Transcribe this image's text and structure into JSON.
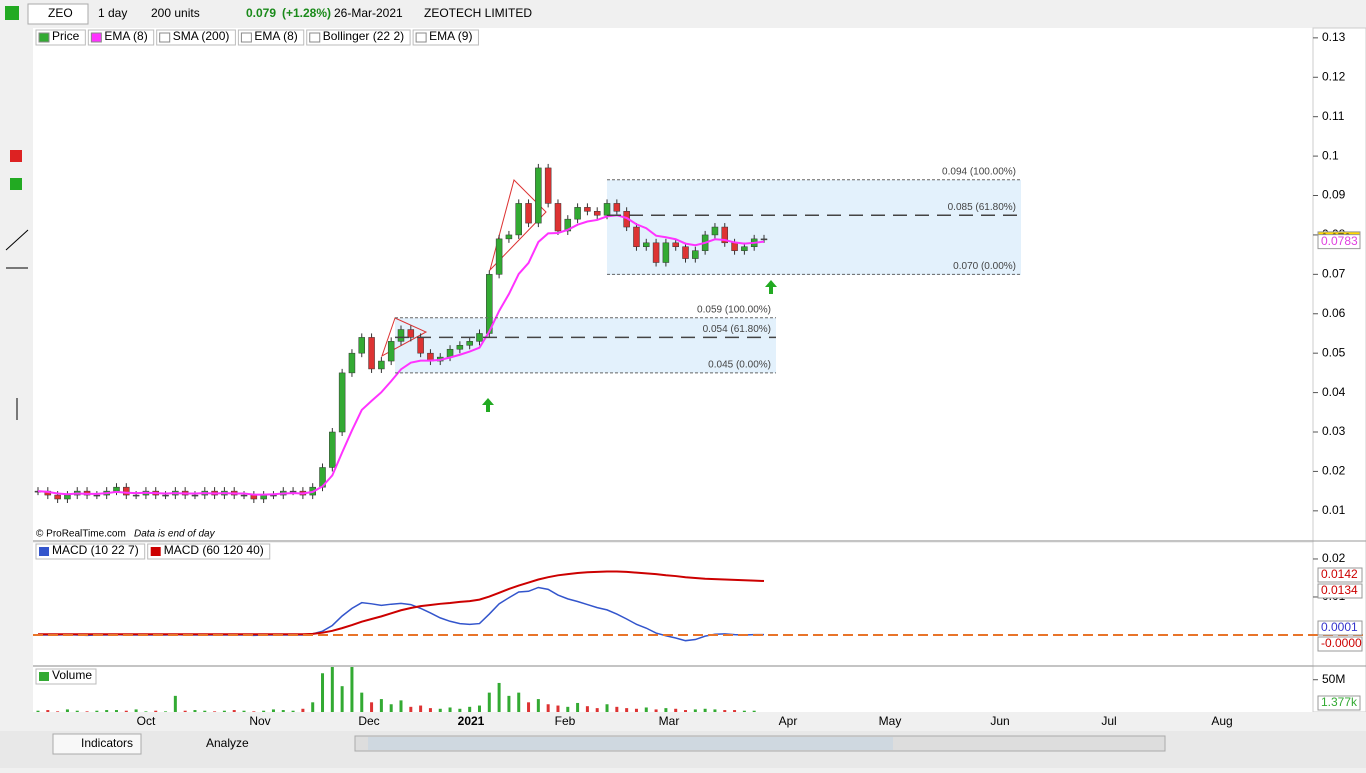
{
  "toolbar": {
    "symbol": "ZEO",
    "period": "1 day",
    "units": "200 units",
    "price": "0.079",
    "change": "(+1.28%)",
    "date": "26-Mar-2021",
    "name": "ZEOTECH LIMITED"
  },
  "chart_data": [
    {
      "type": "candlestick",
      "legend": [
        "Price",
        "EMA (8)",
        "SMA (200)",
        "EMA (8)",
        "Bollinger (22 2)",
        "EMA (9)"
      ],
      "series": [
        {
          "name": "Price",
          "values": [
            0.015,
            0.014,
            0.013,
            0.014,
            0.015,
            0.014,
            0.014,
            0.015,
            0.016,
            0.014,
            0.014,
            0.015,
            0.014,
            0.014,
            0.015,
            0.014,
            0.014,
            0.015,
            0.014,
            0.015,
            0.014,
            0.014,
            0.013,
            0.014,
            0.014,
            0.015,
            0.015,
            0.014,
            0.016,
            0.021,
            0.03,
            0.045,
            0.05,
            0.054,
            0.046,
            0.048,
            0.053,
            0.056,
            0.054,
            0.05,
            0.048,
            0.049,
            0.051,
            0.052,
            0.053,
            0.055,
            0.07,
            0.079,
            0.08,
            0.088,
            0.083,
            0.097,
            0.088,
            0.081,
            0.084,
            0.087,
            0.086,
            0.085,
            0.088,
            0.086,
            0.082,
            0.077,
            0.078,
            0.073,
            0.078,
            0.077,
            0.074,
            0.076,
            0.08,
            0.082,
            0.078,
            0.076,
            0.077,
            0.079,
            0.079
          ]
        },
        {
          "name": "EMA (8)",
          "color": "#ff33ff",
          "values": [
            0.015,
            0.0148,
            0.0144,
            0.0142,
            0.0144,
            0.0143,
            0.0143,
            0.0145,
            0.0148,
            0.0146,
            0.0145,
            0.0146,
            0.0145,
            0.0144,
            0.0145,
            0.0144,
            0.0144,
            0.0145,
            0.0144,
            0.0145,
            0.0144,
            0.0144,
            0.0141,
            0.0141,
            0.0142,
            0.0144,
            0.0145,
            0.0144,
            0.0148,
            0.0162,
            0.019,
            0.0248,
            0.0304,
            0.0356,
            0.0379,
            0.0401,
            0.0429,
            0.0459,
            0.0476,
            0.0481,
            0.0481,
            0.0483,
            0.0489,
            0.0496,
            0.0504,
            0.0514,
            0.0555,
            0.0607,
            0.065,
            0.0701,
            0.0729,
            0.0782,
            0.0804,
            0.0805,
            0.0813,
            0.0826,
            0.0834,
            0.0838,
            0.0847,
            0.085,
            0.0843,
            0.0827,
            0.0817,
            0.0798,
            0.0794,
            0.0789,
            0.0778,
            0.0774,
            0.078,
            0.0789,
            0.0787,
            0.0781,
            0.0778,
            0.078,
            0.0783
          ]
        }
      ],
      "ylim": [
        0.0026,
        0.1325
      ],
      "yticks": [
        0.01,
        0.02,
        0.03,
        0.04,
        0.05,
        0.06,
        0.07,
        0.08,
        0.09,
        0.1,
        0.11,
        0.12,
        0.13
      ],
      "readouts": [
        0.079,
        0.0783
      ],
      "levels": [
        {
          "value": 0.094,
          "label": "0.094 (100.00%)"
        },
        {
          "value": 0.085,
          "label": "0.085 (61.80%)"
        },
        {
          "value": 0.07,
          "label": "0.070 (0.00%)"
        },
        {
          "value": 0.059,
          "label": "0.059 (100.00%)"
        },
        {
          "value": 0.054,
          "label": "0.054 (61.80%)"
        },
        {
          "value": 0.045,
          "label": "0.045 (0.00%)"
        }
      ],
      "credit": "© ProRealTime.com",
      "note": "Data is end of day"
    },
    {
      "type": "line",
      "series": [
        {
          "name": "MACD (10 22 7)",
          "color": "#3355cc",
          "values": [
            0,
            0,
            0,
            0.0001,
            0,
            -0.0001,
            0,
            0,
            0.0001,
            0,
            0,
            0,
            0,
            0,
            0.0001,
            0,
            0,
            0,
            0,
            0,
            0,
            0,
            -0.0001,
            0,
            0,
            0,
            0,
            0,
            0.0003,
            0.001,
            0.0025,
            0.005,
            0.007,
            0.0085,
            0.0082,
            0.0078,
            0.0081,
            0.0083,
            0.008,
            0.007,
            0.0058,
            0.0045,
            0.0036,
            0.003,
            0.0028,
            0.003,
            0.0055,
            0.0082,
            0.0098,
            0.0113,
            0.0115,
            0.0125,
            0.012,
            0.0105,
            0.0095,
            0.0088,
            0.008,
            0.0072,
            0.0066,
            0.0055,
            0.0042,
            0.0028,
            0.0018,
            0.0005,
            -0.0002,
            -0.0008,
            -0.0015,
            -0.0012,
            -0.0003,
            0.0002,
            0.0003,
            0.0001,
            0,
            0.0001,
            0.0001
          ]
        },
        {
          "name": "MACD (60 120 40)",
          "color": "#cc0000",
          "values": [
            0.0002,
            0.0002,
            0.0002,
            0.0002,
            0.0002,
            0.0002,
            0.0002,
            0.0002,
            0.0002,
            0.0002,
            0.0002,
            0.0002,
            0.0002,
            0.0002,
            0.0002,
            0.0002,
            0.0002,
            0.0002,
            0.0002,
            0.0002,
            0.0002,
            0.0002,
            0.0002,
            0.0002,
            0.0002,
            0.0002,
            0.0002,
            0.0002,
            0.0003,
            0.0006,
            0.0011,
            0.0018,
            0.0026,
            0.0035,
            0.0042,
            0.0049,
            0.0057,
            0.0065,
            0.0071,
            0.0076,
            0.0079,
            0.0082,
            0.0084,
            0.0087,
            0.0089,
            0.0093,
            0.0101,
            0.0111,
            0.0121,
            0.013,
            0.0138,
            0.0146,
            0.0152,
            0.0157,
            0.016,
            0.0163,
            0.0165,
            0.0166,
            0.0167,
            0.0167,
            0.0166,
            0.0164,
            0.0162,
            0.016,
            0.0157,
            0.0155,
            0.0152,
            0.015,
            0.0148,
            0.0147,
            0.0146,
            0.0145,
            0.0144,
            0.0143,
            0.0142
          ]
        }
      ],
      "ylim": [
        -0.0079,
        0.0242
      ],
      "yticks": [
        0.01,
        0.02
      ],
      "readouts": [
        0.0142,
        0.0134,
        0.0001,
        {
          "value": 0,
          "label": "-0.0000"
        }
      ]
    },
    {
      "type": "bar",
      "series": [
        {
          "name": "Volume",
          "values": [
            2000000.0,
            3000000.0,
            1000000.0,
            4000000.0,
            2000000.0,
            1000000.0,
            2000000.0,
            3000000.0,
            3000000.0,
            2000000.0,
            4000000.0,
            1000000.0,
            2000000.0,
            1000000.0,
            25000000.0,
            2000000.0,
            3000000.0,
            2000000.0,
            1000000.0,
            2000000.0,
            3000000.0,
            2000000.0,
            1000000.0,
            2000000.0,
            4000000.0,
            3000000.0,
            2000000.0,
            5000000.0,
            15000000.0,
            60000000.0,
            70000000.0,
            40000000.0,
            70000000.0,
            30000000.0,
            15000000.0,
            20000000.0,
            12000000.0,
            18000000.0,
            8000000.0,
            10000000.0,
            6000000.0,
            5000000.0,
            7000000.0,
            5000000.0,
            8000000.0,
            10000000.0,
            30000000.0,
            45000000.0,
            25000000.0,
            30000000.0,
            15000000.0,
            20000000.0,
            12000000.0,
            10000000.0,
            8000000.0,
            14000000.0,
            9000000.0,
            6000000.0,
            12000000.0,
            8000000.0,
            6000000.0,
            5000000.0,
            7000000.0,
            4000000.0,
            6000000.0,
            5000000.0,
            3000000.0,
            4000000.0,
            5000000.0,
            4000000.0,
            3000000.0,
            3000000.0,
            2000000.0,
            2000000.0,
            1377
          ]
        }
      ],
      "ylim": [
        0,
        69700000
      ],
      "yticks": [
        {
          "value": 50000000,
          "label": "50M"
        }
      ],
      "readouts": [
        {
          "value": 1377,
          "label": "1.377k"
        }
      ]
    }
  ],
  "x_axis": {
    "labels": [
      "Oct",
      "Nov",
      "Dec",
      "2021",
      "Feb",
      "Mar",
      "Apr",
      "May",
      "Jun",
      "Jul",
      "Aug"
    ]
  },
  "bottom_bar": {
    "indicators": "Indicators",
    "analyze": "Analyze"
  }
}
